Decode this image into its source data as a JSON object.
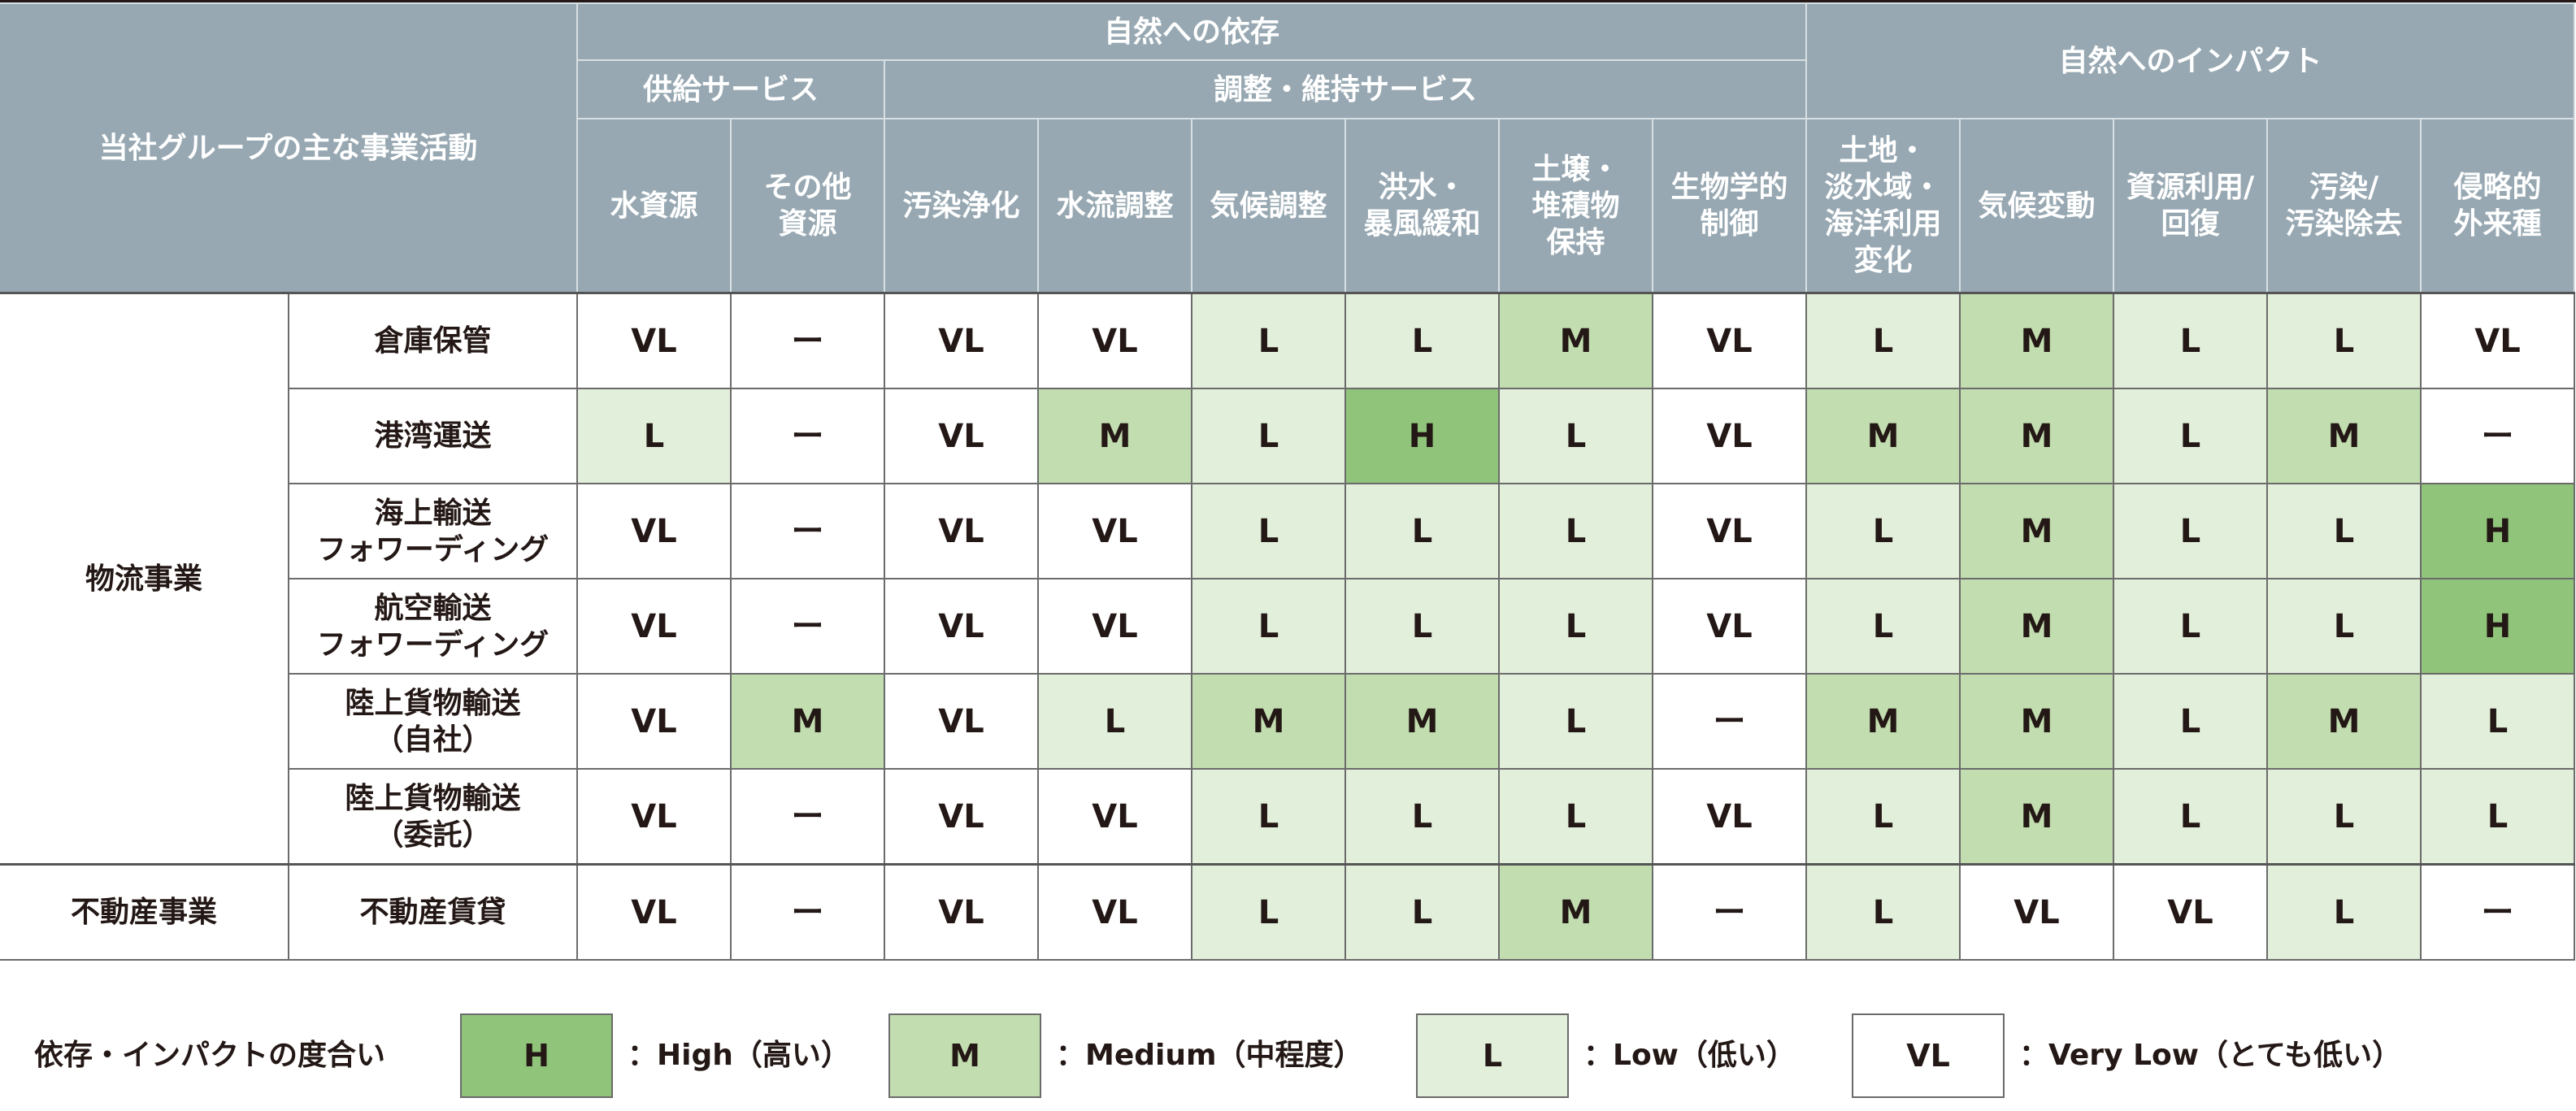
{
  "colors": {
    "header": "#97a8b2",
    "H": "#8fc47a",
    "M": "#c2ddb0",
    "L": "#e2efda",
    "VL": "#ffffff"
  },
  "header": {
    "activity": "当社グループの主な事業活動",
    "dependency": "自然への依存",
    "impact": "自然へのインパクト",
    "provisioning": "供給サービス",
    "regulating": "調整・維持サービス",
    "columns": [
      "水資源",
      "その他\n資源",
      "汚染浄化",
      "水流調整",
      "気候調整",
      "洪水・\n暴風緩和",
      "土壌・\n堆積物\n保持",
      "生物学的\n制御",
      "土地・\n淡水域・\n海洋利用\n変化",
      "気候変動",
      "資源利用/\n回復",
      "汚染/\n汚染除去",
      "侵略的\n外来種"
    ]
  },
  "categories": [
    {
      "name": "物流事業",
      "rows": [
        {
          "activity": "倉庫保管",
          "values": [
            "VL",
            "ー",
            "VL",
            "VL",
            "L",
            "L",
            "M",
            "VL",
            "L",
            "M",
            "L",
            "L",
            "VL"
          ]
        },
        {
          "activity": "港湾運送",
          "values": [
            "L",
            "ー",
            "VL",
            "M",
            "L",
            "H",
            "L",
            "VL",
            "M",
            "M",
            "L",
            "M",
            "ー"
          ]
        },
        {
          "activity": "海上輸送\nフォワーディング",
          "values": [
            "VL",
            "ー",
            "VL",
            "VL",
            "L",
            "L",
            "L",
            "VL",
            "L",
            "M",
            "L",
            "L",
            "H"
          ]
        },
        {
          "activity": "航空輸送\nフォワーディング",
          "values": [
            "VL",
            "ー",
            "VL",
            "VL",
            "L",
            "L",
            "L",
            "VL",
            "L",
            "M",
            "L",
            "L",
            "H"
          ]
        },
        {
          "activity": "陸上貨物輸送\n（自社）",
          "values": [
            "VL",
            "M",
            "VL",
            "L",
            "M",
            "M",
            "L",
            "ー",
            "M",
            "M",
            "L",
            "M",
            "L"
          ]
        },
        {
          "activity": "陸上貨物輸送\n（委託）",
          "values": [
            "VL",
            "ー",
            "VL",
            "VL",
            "L",
            "L",
            "L",
            "VL",
            "L",
            "M",
            "L",
            "L",
            "L"
          ]
        }
      ]
    },
    {
      "name": "不動産事業",
      "rows": [
        {
          "activity": "不動産賃貸",
          "values": [
            "VL",
            "ー",
            "VL",
            "VL",
            "L",
            "L",
            "M",
            "ー",
            "L",
            "VL",
            "VL",
            "L",
            "ー"
          ]
        }
      ]
    }
  ],
  "legend": {
    "title": "依存・インパクトの度合い",
    "items": [
      {
        "code": "H",
        "text": "：High（高い）"
      },
      {
        "code": "M",
        "text": "：Medium（中程度）"
      },
      {
        "code": "L",
        "text": "：Low（低い）"
      },
      {
        "code": "VL",
        "text": "：Very Low（とても低い）"
      }
    ]
  }
}
